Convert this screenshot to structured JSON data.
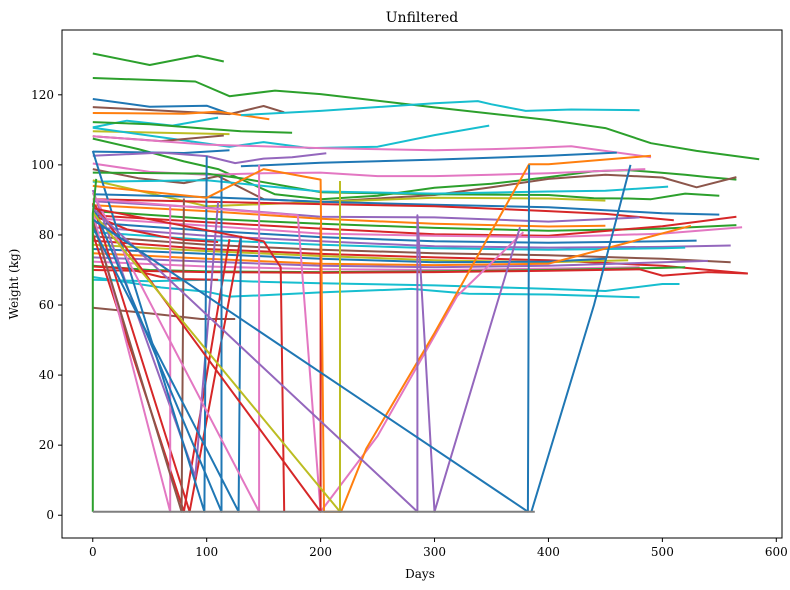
{
  "chart_data": {
    "type": "line",
    "title": "Unfiltered",
    "xlabel": "Days",
    "ylabel": "Weight (kg)",
    "xlim": [
      -27,
      605
    ],
    "ylim": [
      -6.5,
      138.5
    ],
    "xticks": [
      0,
      100,
      200,
      300,
      400,
      500,
      600
    ],
    "yticks": [
      0,
      20,
      40,
      60,
      80,
      100,
      120
    ],
    "grid": false,
    "legend": "none",
    "palette": [
      "#1f77b4",
      "#ff7f0e",
      "#2ca02c",
      "#d62728",
      "#9467bd",
      "#8c564b",
      "#e377c2",
      "#7f7f7f",
      "#bcbd22",
      "#17becf"
    ],
    "series": [
      {
        "color": "#2ca02c",
        "x": [
          0,
          50,
          92,
          115
        ],
        "y": [
          131.8,
          128.5,
          131.2,
          129.5
        ]
      },
      {
        "color": "#2ca02c",
        "x": [
          0,
          90,
          120,
          160,
          200,
          300,
          400,
          450,
          490,
          530,
          585
        ],
        "y": [
          124.8,
          123.8,
          119.6,
          121.2,
          120.2,
          116.4,
          112.8,
          110.5,
          106.2,
          104,
          101.6
        ]
      },
      {
        "color": "#1f77b4",
        "x": [
          0,
          50,
          100,
          118
        ],
        "y": [
          118.8,
          116.6,
          116.9,
          114.8
        ]
      },
      {
        "color": "#8c564b",
        "x": [
          0,
          120,
          150,
          168
        ],
        "y": [
          116.5,
          114.5,
          116.8,
          115
        ]
      },
      {
        "color": "#ff7f0e",
        "x": [
          0,
          80,
          110,
          155
        ],
        "y": [
          114.8,
          114.6,
          115.2,
          113
        ]
      },
      {
        "color": "#17becf",
        "x": [
          0,
          30,
          70,
          110
        ],
        "y": [
          110.7,
          112.6,
          111.2,
          113.5
        ]
      },
      {
        "color": "#17becf",
        "x": [
          130,
          200,
          300,
          338,
          350,
          380,
          420,
          480
        ],
        "y": [
          114.2,
          115.4,
          117.6,
          118.2,
          117.3,
          115.4,
          115.8,
          115.6
        ]
      },
      {
        "color": "#2ca02c",
        "x": [
          0,
          50,
          100,
          130,
          175
        ],
        "y": [
          112.2,
          111.6,
          110.3,
          109.6,
          109.2
        ]
      },
      {
        "color": "#bcbd22",
        "x": [
          0,
          60,
          120
        ],
        "y": [
          109.6,
          109.2,
          108.8
        ]
      },
      {
        "color": "#17becf",
        "x": [
          0,
          120,
          150,
          190,
          250,
          300,
          348
        ],
        "y": [
          110.6,
          105.2,
          106.5,
          104.8,
          105.2,
          108.5,
          111.2
        ]
      },
      {
        "color": "#8c564b",
        "x": [
          0,
          60,
          115
        ],
        "y": [
          108.2,
          106.8,
          108.4
        ]
      },
      {
        "color": "#e377c2",
        "x": [
          0,
          100,
          200,
          300,
          350,
          380,
          420,
          490
        ],
        "y": [
          108.2,
          105.8,
          104.8,
          104.2,
          104.5,
          104.8,
          105.3,
          102.2
        ]
      },
      {
        "color": "#2ca02c",
        "x": [
          0,
          40,
          80,
          110,
          160,
          200,
          250,
          300,
          350,
          400,
          440,
          470,
          490,
          520,
          540,
          565
        ],
        "y": [
          107.5,
          104.5,
          101,
          98.8,
          91.6,
          90.2,
          91.2,
          93.5,
          94.6,
          96.5,
          98.2,
          98.5,
          98,
          97.2,
          96.5,
          95.8
        ]
      },
      {
        "color": "#1f77b4",
        "x": [
          0,
          80,
          120
        ],
        "y": [
          103.8,
          103.4,
          104.2
        ]
      },
      {
        "color": "#9467bd",
        "x": [
          0,
          60,
          100,
          125,
          150,
          175,
          205
        ],
        "y": [
          102.6,
          103.5,
          102.5,
          100.5,
          101.8,
          102.2,
          103.3
        ]
      },
      {
        "color": "#1f77b4",
        "x": [
          130,
          200,
          300,
          400,
          460
        ],
        "y": [
          99.6,
          100.6,
          101.5,
          102.6,
          103.5
        ]
      },
      {
        "color": "#e377c2",
        "x": [
          0,
          50,
          100,
          150,
          200,
          250,
          300,
          350,
          400,
          450,
          485
        ],
        "y": [
          100.4,
          98,
          97.2,
          97.6,
          97.8,
          96.8,
          96.8,
          97.2,
          97.6,
          98.3,
          98.8
        ]
      },
      {
        "color": "#8c564b",
        "x": [
          0,
          40,
          80,
          110,
          150,
          200,
          250,
          300,
          350,
          400,
          450,
          500,
          530,
          565
        ],
        "y": [
          98.8,
          96.2,
          94.8,
          96.8,
          90.2,
          89.4,
          90.4,
          91.4,
          93.6,
          96,
          97.2,
          96.4,
          93.6,
          96.5
        ]
      },
      {
        "color": "#2ca02c",
        "x": [
          0,
          100,
          130,
          200,
          300,
          400,
          440,
          470,
          490,
          520,
          550
        ],
        "y": [
          97.8,
          97.5,
          96.2,
          92.2,
          91.6,
          91.4,
          90.5,
          90.4,
          90.2,
          91.8,
          91.2
        ]
      },
      {
        "color": "#17becf",
        "x": [
          0,
          100,
          200,
          300,
          400,
          450,
          505
        ],
        "y": [
          95.2,
          95.6,
          92.4,
          91.8,
          92.4,
          92.6,
          93.8
        ]
      },
      {
        "color": "#bcbd22",
        "x": [
          0,
          100,
          200,
          300,
          400,
          450
        ],
        "y": [
          95.6,
          88.2,
          89.4,
          90.6,
          90.4,
          89.8
        ]
      },
      {
        "color": "#1f77b4",
        "x": [
          0,
          100,
          200,
          300,
          400,
          500,
          550
        ],
        "y": [
          91.6,
          90.8,
          89.5,
          88.6,
          87.9,
          86.2,
          85.8
        ]
      },
      {
        "color": "#d62728",
        "x": [
          0,
          100,
          200,
          300,
          400,
          450,
          510
        ],
        "y": [
          90.2,
          89.5,
          88.8,
          88.2,
          86.8,
          86,
          84.2
        ]
      },
      {
        "color": "#9467bd",
        "x": [
          0,
          100,
          200,
          300,
          400,
          480
        ],
        "y": [
          89.6,
          87.8,
          85.2,
          85,
          83.8,
          85
        ]
      },
      {
        "color": "#ff7f0e",
        "x": [
          0,
          100,
          200,
          300,
          400,
          450
        ],
        "y": [
          88.5,
          86.8,
          84.6,
          83.2,
          82.4,
          82.6
        ]
      },
      {
        "color": "#2ca02c",
        "x": [
          0,
          100,
          200,
          300,
          400,
          500,
          565
        ],
        "y": [
          86.8,
          84.6,
          83.2,
          82,
          81.2,
          81.8,
          82.8
        ]
      },
      {
        "color": "#d62728",
        "x": [
          0,
          100,
          200,
          300,
          400,
          500,
          565
        ],
        "y": [
          85.6,
          83.6,
          81.8,
          80.2,
          79.8,
          82.5,
          85.2
        ]
      },
      {
        "color": "#e377c2",
        "x": [
          0,
          100,
          200,
          300,
          400,
          500,
          570
        ],
        "y": [
          84.8,
          82.6,
          80.4,
          79.8,
          79.4,
          80.4,
          82.2
        ]
      },
      {
        "color": "#1f77b4",
        "x": [
          0,
          100,
          200,
          300,
          400,
          500,
          530
        ],
        "y": [
          83.5,
          81.2,
          79.4,
          78.2,
          77.8,
          78.2,
          78.4
        ]
      },
      {
        "color": "#9467bd",
        "x": [
          0,
          100,
          200,
          300,
          400,
          500,
          560
        ],
        "y": [
          82.2,
          79.8,
          78.2,
          76.8,
          76.4,
          76.6,
          77
        ]
      },
      {
        "color": "#17becf",
        "x": [
          0,
          100,
          200,
          300,
          400,
          500,
          520
        ],
        "y": [
          80.8,
          78.6,
          77.2,
          76.2,
          75.8,
          76.2,
          76.4
        ]
      },
      {
        "color": "#8c564b",
        "x": [
          0,
          100,
          200,
          300,
          400,
          500,
          560
        ],
        "y": [
          79.6,
          77.2,
          75.8,
          74.8,
          74.2,
          73.2,
          72.2
        ]
      },
      {
        "color": "#d62728",
        "x": [
          0,
          100,
          200,
          300,
          400,
          500,
          575
        ],
        "y": [
          78.4,
          76,
          74.6,
          73.6,
          72.8,
          71.2,
          69
        ]
      },
      {
        "color": "#bcbd22",
        "x": [
          0,
          100,
          200,
          300,
          400,
          470
        ],
        "y": [
          77.2,
          75.4,
          74,
          72.8,
          72.2,
          72.8
        ]
      },
      {
        "color": "#1f77b4",
        "x": [
          0,
          100,
          200,
          300,
          400,
          450
        ],
        "y": [
          76,
          74.6,
          73.2,
          72.2,
          72.4,
          73.2
        ]
      },
      {
        "color": "#ff7f0e",
        "x": [
          0,
          100,
          200,
          300,
          400,
          525
        ],
        "y": [
          74.8,
          73.2,
          71.8,
          71.4,
          71.8,
          82.6
        ]
      },
      {
        "color": "#9467bd",
        "x": [
          0,
          100,
          200,
          300,
          400,
          500,
          540
        ],
        "y": [
          73.6,
          72.4,
          71.2,
          70.8,
          71.2,
          72.2,
          72.6
        ]
      },
      {
        "color": "#e377c2",
        "x": [
          0,
          100,
          200,
          300,
          400,
          480
        ],
        "y": [
          72.4,
          71,
          70.2,
          70,
          70.4,
          70.8
        ]
      },
      {
        "color": "#2ca02c",
        "x": [
          0,
          50,
          100,
          200,
          300,
          400,
          500,
          520
        ],
        "y": [
          71.2,
          70,
          69.6,
          69.4,
          69.6,
          70,
          70.6,
          70.8
        ]
      },
      {
        "color": "#d62728",
        "x": [
          0,
          100,
          200,
          300,
          400,
          480,
          500,
          540,
          575
        ],
        "y": [
          70,
          69.4,
          69.2,
          69.4,
          69.8,
          70.2,
          68.4,
          69.4,
          69
        ]
      },
      {
        "color": "#17becf",
        "x": [
          0,
          50,
          100,
          150,
          200,
          300,
          400,
          450,
          500,
          515
        ],
        "y": [
          67.2,
          66.8,
          67.2,
          66.6,
          66.2,
          65.6,
          64.6,
          64,
          66,
          66
        ]
      },
      {
        "color": "#17becf",
        "x": [
          0,
          60,
          100,
          120,
          150,
          200,
          280,
          330,
          400,
          480
        ],
        "y": [
          68,
          65,
          63.8,
          62.4,
          62.8,
          63.6,
          64.6,
          63.2,
          63,
          62.2
        ]
      },
      {
        "color": "#8c564b",
        "x": [
          0,
          50,
          95,
          125
        ],
        "y": [
          59.2,
          57.6,
          56,
          56
        ]
      },
      {
        "color": "#d62728",
        "x": [
          0,
          30,
          60,
          80,
          110
        ],
        "y": [
          71,
          70.4,
          68,
          67.4,
          67.2
        ]
      },
      {
        "color": "#d62728",
        "x": [
          0,
          30,
          60,
          80,
          110
        ],
        "y": [
          85.6,
          81.6,
          79.6,
          78.6,
          78
        ]
      },
      {
        "color": "#d62728",
        "x": [
          0,
          80,
          120
        ],
        "y": [
          80.4,
          1,
          78.8
        ]
      },
      {
        "color": "#d62728",
        "x": [
          0,
          85,
          130
        ],
        "y": [
          88.8,
          1,
          79.6
        ]
      },
      {
        "color": "#9467bd",
        "x": [
          0,
          90,
          110
        ],
        "y": [
          92.8,
          11,
          89.4
        ]
      },
      {
        "color": "#e377c2",
        "x": [
          0,
          68,
          68
        ],
        "y": [
          86.4,
          1,
          88.6
        ]
      },
      {
        "color": "#8c564b",
        "x": [
          0,
          78,
          80
        ],
        "y": [
          84,
          1,
          90.4
        ]
      },
      {
        "color": "#1f77b4",
        "x": [
          0,
          98,
          100
        ],
        "y": [
          104,
          1,
          102.5
        ]
      },
      {
        "color": "#1f77b4",
        "x": [
          0,
          113,
          113
        ],
        "y": [
          88.4,
          1,
          96.8
        ]
      },
      {
        "color": "#1f77b4",
        "x": [
          0,
          128,
          130
        ],
        "y": [
          82.2,
          1,
          79.8
        ]
      },
      {
        "color": "#e377c2",
        "x": [
          0,
          146,
          146
        ],
        "y": [
          92,
          1,
          100
        ]
      },
      {
        "color": "#d62728",
        "x": [
          0,
          150,
          165,
          168
        ],
        "y": [
          87.6,
          78.2,
          70.8,
          1
        ]
      },
      {
        "color": "#e377c2",
        "x": [
          0,
          180,
          200,
          250,
          320,
          378
        ],
        "y": [
          90.2,
          85.6,
          1,
          22.6,
          62.6,
          80.8
        ]
      },
      {
        "color": "#d62728",
        "x": [
          0,
          200,
          200
        ],
        "y": [
          89.2,
          1,
          82.4
        ]
      },
      {
        "color": "#ff7f0e",
        "x": [
          0,
          100,
          150,
          200,
          203,
          218,
          240,
          300,
          383,
          400,
          490
        ],
        "y": [
          94,
          90.6,
          98.8,
          95.8,
          1,
          1,
          19,
          52,
          100.2,
          100.2,
          102.6
        ]
      },
      {
        "color": "#bcbd22",
        "x": [
          0,
          217,
          217
        ],
        "y": [
          86.4,
          1,
          95.4
        ]
      },
      {
        "color": "#9467bd",
        "x": [
          0,
          285,
          285,
          300,
          375
        ],
        "y": [
          87.6,
          1,
          85.6,
          1,
          82.2
        ]
      },
      {
        "color": "#1f77b4",
        "x": [
          0,
          382,
          383
        ],
        "y": [
          84.4,
          1,
          100
        ]
      },
      {
        "color": "#1f77b4",
        "x": [
          385,
          440,
          472
        ],
        "y": [
          1,
          60,
          100
        ]
      },
      {
        "color": "#2ca02c",
        "x": [
          0,
          0,
          3
        ],
        "y": [
          1,
          86,
          96
        ]
      },
      {
        "color": "#7f7f7f",
        "x": [
          0,
          388
        ],
        "y": [
          1,
          1
        ]
      }
    ]
  }
}
